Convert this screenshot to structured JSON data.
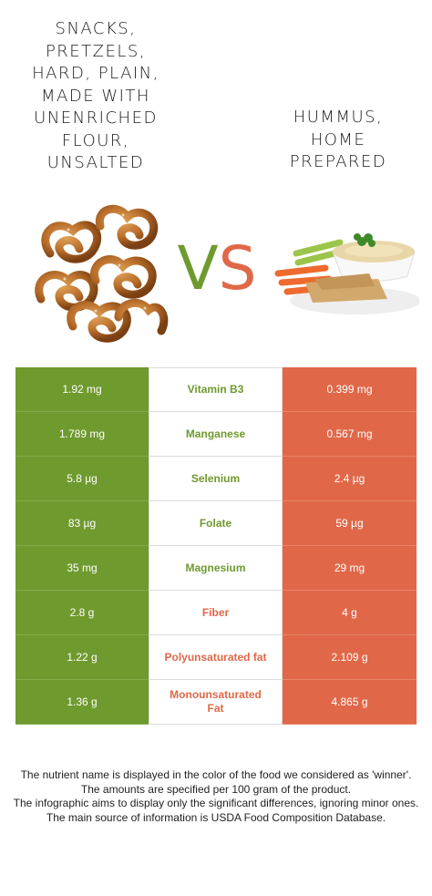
{
  "left_food": {
    "title": "Snacks, pretzels, hard, plain, made with unenriched flour, unsalted"
  },
  "right_food": {
    "title": "Hummus, home prepared"
  },
  "vs": {
    "v": "V",
    "s": "S"
  },
  "colors": {
    "left": "#6f9a2e",
    "right": "#e06848"
  },
  "rows": [
    {
      "nutrient": "Vitamin B3",
      "left": "1.92 mg",
      "right": "0.399 mg",
      "winner": "left"
    },
    {
      "nutrient": "Manganese",
      "left": "1.789 mg",
      "right": "0.567 mg",
      "winner": "left"
    },
    {
      "nutrient": "Selenium",
      "left": "5.8 µg",
      "right": "2.4 µg",
      "winner": "left"
    },
    {
      "nutrient": "Folate",
      "left": "83 µg",
      "right": "59 µg",
      "winner": "left"
    },
    {
      "nutrient": "Magnesium",
      "left": "35 mg",
      "right": "29 mg",
      "winner": "left"
    },
    {
      "nutrient": "Fiber",
      "left": "2.8 g",
      "right": "4 g",
      "winner": "right"
    },
    {
      "nutrient": "Polyunsaturated fat",
      "left": "1.22 g",
      "right": "2.109 g",
      "winner": "right"
    },
    {
      "nutrient": "Monounsaturated Fat",
      "left": "1.36 g",
      "right": "4.865 g",
      "winner": "right"
    }
  ],
  "notes": [
    "The nutrient name is displayed in the color of the food we considered as 'winner'.",
    "The amounts are specified per 100 gram of the product.",
    "The infographic aims to display only the significant differences, ignoring minor ones.",
    "The main source of information is USDA Food Composition Database."
  ]
}
